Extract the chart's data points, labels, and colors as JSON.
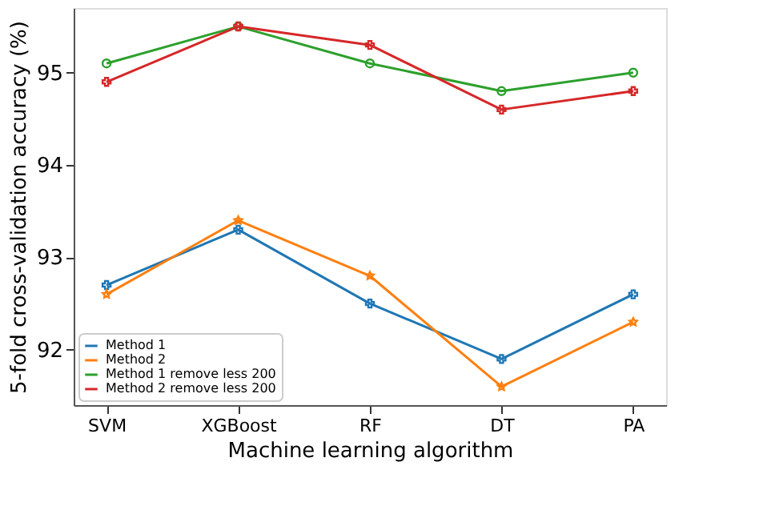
{
  "chart_data": {
    "type": "line",
    "xlabel": "Machine learning algorithm",
    "ylabel": "5-fold cross-validation accuracy (%)",
    "categories": [
      "SVM",
      "XGBoost",
      "RF",
      "DT",
      "PA"
    ],
    "series": [
      {
        "name": "Method 1",
        "color": "#1f77b4",
        "marker": "cross",
        "values": [
          92.7,
          93.3,
          92.5,
          91.9,
          92.6
        ]
      },
      {
        "name": "Method 2",
        "color": "#ff7f0e",
        "marker": "star",
        "values": [
          92.6,
          93.4,
          92.8,
          91.6,
          92.3
        ]
      },
      {
        "name": "Method 1 remove less 200",
        "color": "#2ca02c",
        "marker": "circle",
        "values": [
          95.1,
          95.5,
          95.1,
          94.8,
          95.0
        ]
      },
      {
        "name": "Method 2 remove less 200",
        "color": "#d62728",
        "marker": "cross",
        "values": [
          94.9,
          95.5,
          95.3,
          94.6,
          94.8
        ]
      }
    ],
    "ylim": [
      91.4,
      95.7
    ],
    "yticks": [
      92,
      93,
      94,
      95
    ],
    "grid": false,
    "legend": "bottom left"
  }
}
